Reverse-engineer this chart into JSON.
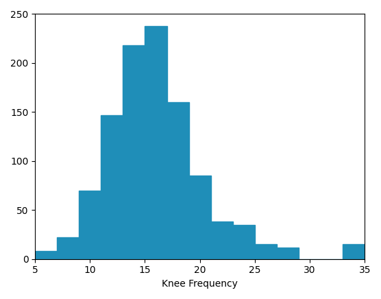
{
  "bin_edges": [
    5,
    7,
    9,
    11,
    13,
    15,
    17,
    19,
    21,
    23,
    25,
    27,
    29,
    31,
    33,
    35
  ],
  "heights": [
    8,
    22,
    70,
    147,
    218,
    238,
    160,
    85,
    38,
    35,
    15,
    12,
    0,
    0,
    15
  ],
  "bar_color": "#1f8eb8",
  "xlabel": "Knee Frequency",
  "xlim": [
    5,
    35
  ],
  "ylim": [
    0,
    250
  ],
  "yticks": [
    0,
    50,
    100,
    150,
    200,
    250
  ],
  "xticks": [
    5,
    10,
    15,
    20,
    25,
    30,
    35
  ]
}
